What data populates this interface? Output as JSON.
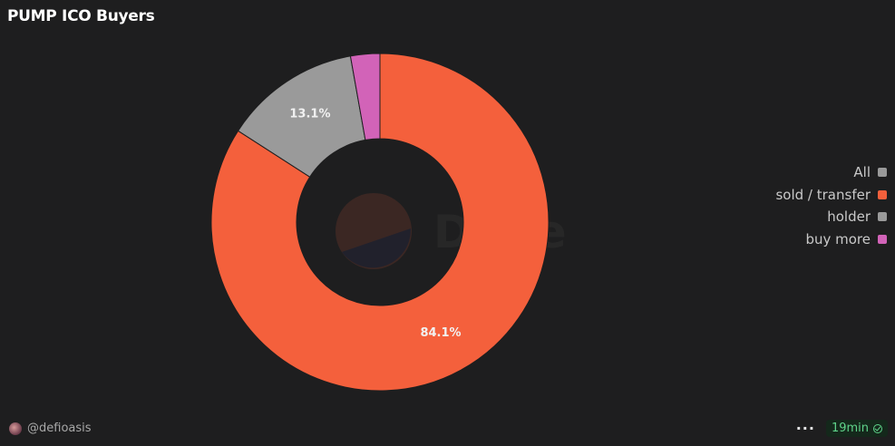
{
  "header": {
    "title": "PUMP ICO Buyers"
  },
  "chart_data": {
    "type": "pie",
    "title": "PUMP ICO Buyers",
    "donut": true,
    "legend_position": "right",
    "legend": [
      {
        "name": "All",
        "color": "#9a9a9a"
      },
      {
        "name": "sold / transfer",
        "color": "#f4603c"
      },
      {
        "name": "holder",
        "color": "#9a9a9a"
      },
      {
        "name": "buy more",
        "color": "#d263b8"
      }
    ],
    "slices": [
      {
        "name": "sold / transfer",
        "value": 84.1,
        "label": "84.1%",
        "color": "#f4603c"
      },
      {
        "name": "holder",
        "value": 13.1,
        "label": "13.1%",
        "color": "#9a9a9a"
      },
      {
        "name": "buy more",
        "value": 2.8,
        "label": "",
        "color": "#d263b8"
      }
    ]
  },
  "footer": {
    "author": "@defioasis",
    "more_icon": "ellipsis-icon",
    "refresh_time": "19min",
    "status_icon": "check-circle-icon"
  }
}
